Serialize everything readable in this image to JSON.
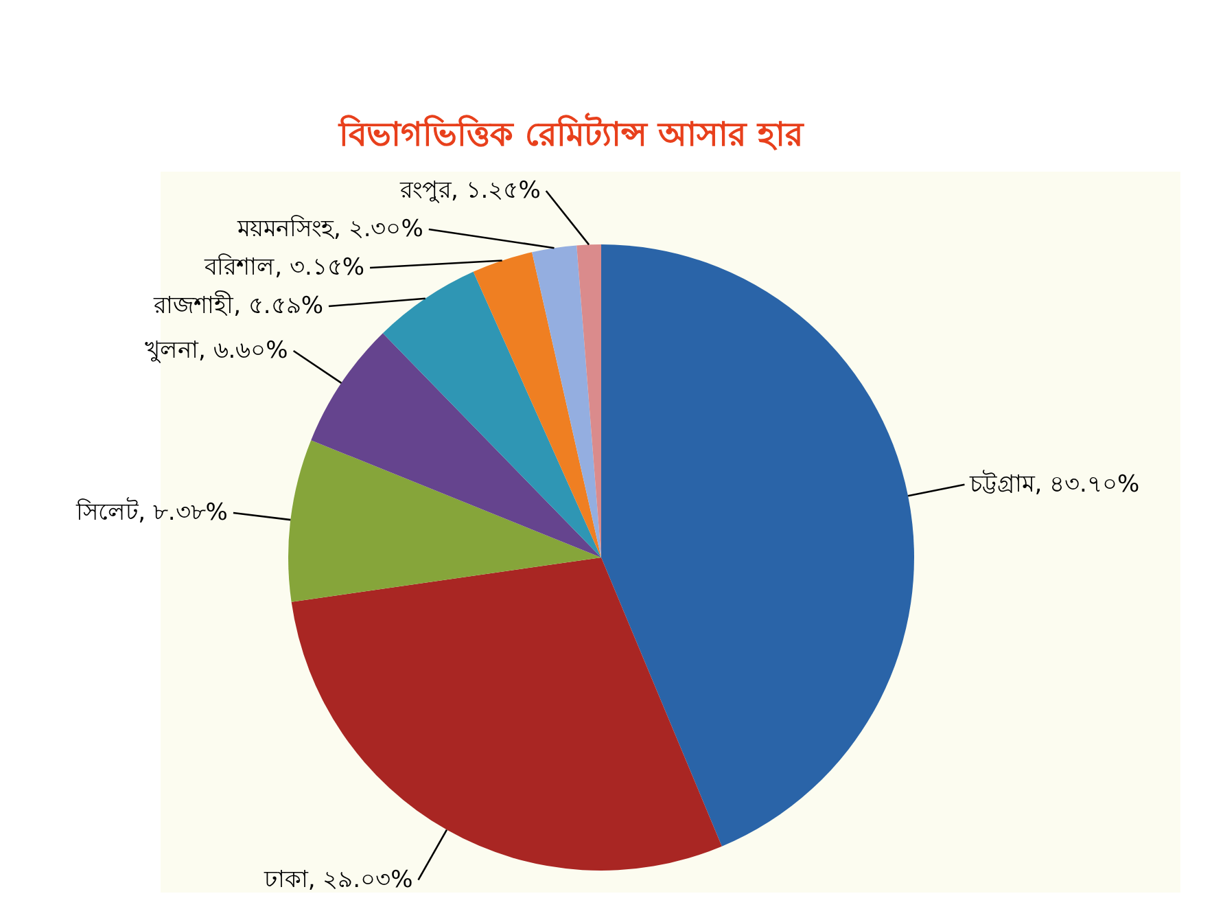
{
  "chart_data": {
    "type": "pie",
    "title": "বিভাগভিত্তিক রেমিট্যান্স আসার হার",
    "categories": [
      "চট্টগ্রাম",
      "ঢাকা",
      "সিলেট",
      "খুলনা",
      "রাজশাহী",
      "বরিশাল",
      "ময়মনসিংহ",
      "রংপুর"
    ],
    "values": [
      43.7,
      29.03,
      8.38,
      6.6,
      5.59,
      3.15,
      2.3,
      1.25
    ],
    "colors": [
      "#2a64a8",
      "#a92623",
      "#86a53a",
      "#65448e",
      "#2f96b4",
      "#ef7f22",
      "#94aee0",
      "#da8b8c"
    ],
    "value_labels": [
      "৪৩.৭০%",
      "২৯.০৩%",
      "৮.৩৮%",
      "৬.৬০%",
      "৫.৫৯%",
      "৩.১৫%",
      "২.৩০%",
      "১.২৫%"
    ]
  }
}
